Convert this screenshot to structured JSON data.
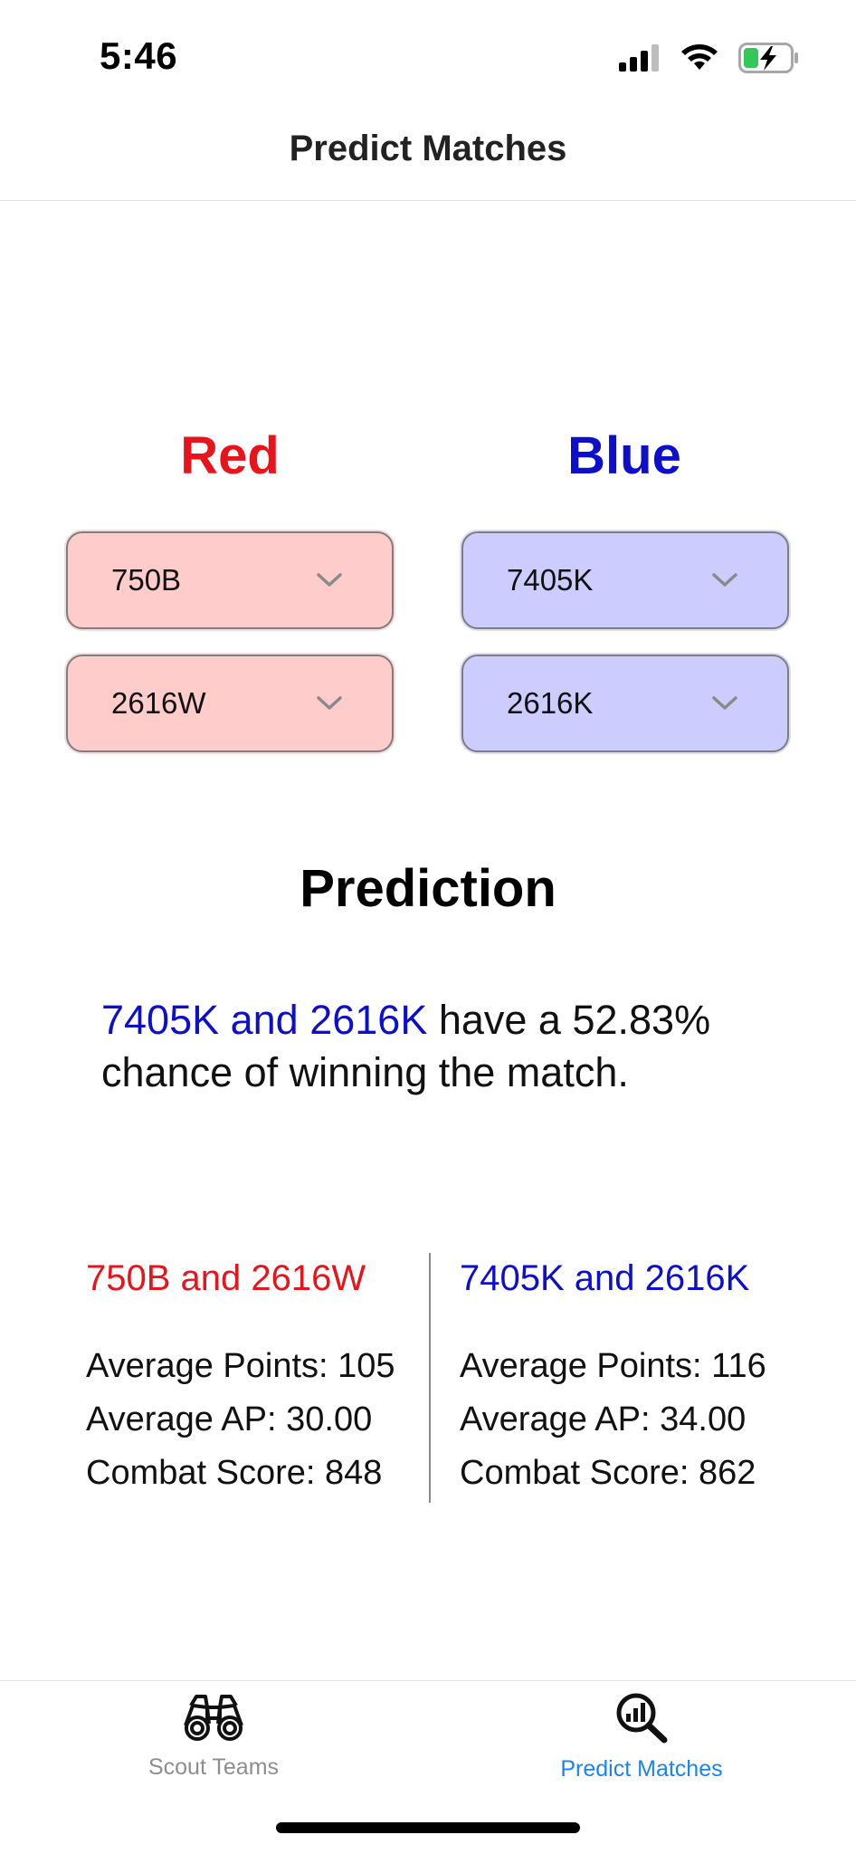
{
  "status_bar": {
    "time": "5:46"
  },
  "nav": {
    "title": "Predict Matches"
  },
  "alliances": {
    "red": {
      "title": "Red",
      "team1": "750B",
      "team2": "2616W",
      "color": "#e8141b",
      "picker_bg": "#ffcccc"
    },
    "blue": {
      "title": "Blue",
      "team1": "7405K",
      "team2": "2616K",
      "color": "#0d0fcb",
      "picker_bg": "#ccccff"
    }
  },
  "prediction": {
    "title": "Prediction",
    "teams": "7405K and 2616K",
    "line1_rest": " have a 52.83%",
    "line2": "chance of winning the match."
  },
  "stats": {
    "red": {
      "title": "750B and 2616W",
      "avg_points": "Average Points: 105",
      "avg_ap": "Average AP: 30.00",
      "combat": "Combat Score: 848"
    },
    "blue": {
      "title": "7405K and 2616K",
      "avg_points": "Average Points: 116",
      "avg_ap": "Average AP: 34.00",
      "combat": "Combat Score: 862"
    }
  },
  "tab_bar": {
    "tabs": [
      {
        "label": "Scout Teams",
        "icon": "binoculars-icon",
        "active": false
      },
      {
        "label": "Predict Matches",
        "icon": "chart-magnifier-icon",
        "active": true
      }
    ],
    "active_color": "#1a84f4",
    "inactive_color": "#8e8e8e"
  }
}
